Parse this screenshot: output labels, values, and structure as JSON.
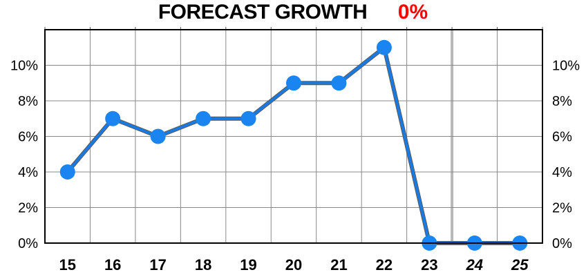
{
  "title": "FORECAST GROWTH",
  "forecast_value": "0%",
  "colors": {
    "line": "#1a7ae0",
    "marker": "#1a85f0",
    "line_shadow": "#5a5a5a",
    "forecast_text": "#ff0000",
    "grid": "#888888",
    "forecast_divider": "#b8b8b8"
  },
  "chart_data": {
    "type": "line",
    "title": "FORECAST GROWTH",
    "categories": [
      "15",
      "16",
      "17",
      "18",
      "19",
      "20",
      "21",
      "22",
      "23",
      "24",
      "25"
    ],
    "forecast_categories": [
      "24",
      "25"
    ],
    "series": [
      {
        "values": [
          4,
          7,
          6,
          7,
          7,
          9,
          9,
          11,
          0,
          0,
          0
        ]
      }
    ],
    "y_ticks": [
      0,
      2,
      4,
      6,
      8,
      10
    ],
    "y_tick_labels": [
      "0%",
      "2%",
      "4%",
      "6%",
      "8%",
      "10%"
    ],
    "ylim": [
      0,
      12
    ],
    "y_axis_both_sides": true,
    "grid": true,
    "xlabel": "",
    "ylabel": ""
  }
}
